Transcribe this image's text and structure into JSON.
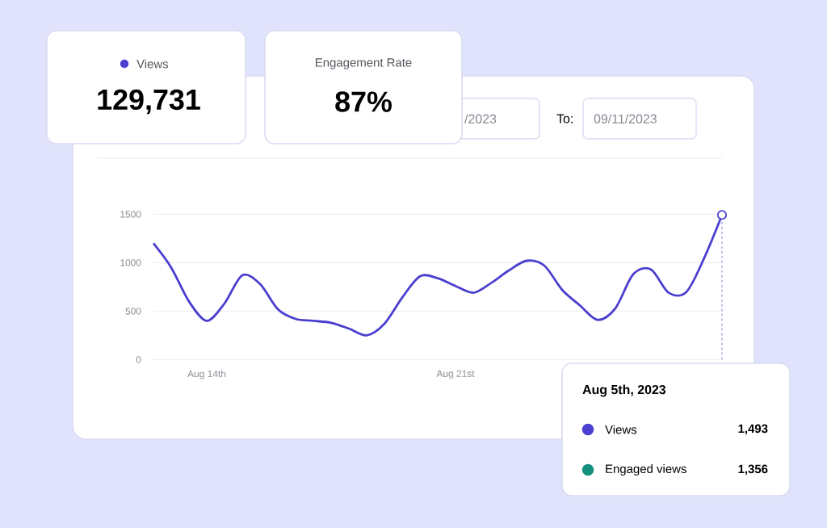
{
  "chart_data": {
    "type": "line",
    "categories": [
      null,
      null,
      null,
      "Aug 14th",
      null,
      null,
      null,
      null,
      null,
      null,
      null,
      null,
      null,
      null,
      null,
      null,
      null,
      "Aug 21st",
      null,
      null,
      null,
      null,
      null,
      null,
      null,
      null,
      null,
      null,
      null,
      null,
      null,
      null,
      null
    ],
    "series": [
      {
        "color": "#4b3fcf",
        "values": [
          1200,
          950,
          600,
          400,
          580,
          870,
          780,
          520,
          420,
          400,
          380,
          320,
          250,
          370,
          640,
          860,
          840,
          760,
          690,
          790,
          920,
          1020,
          970,
          720,
          560,
          410,
          530,
          880,
          930,
          690,
          700,
          1050,
          1493
        ]
      },
      {
        "type": "scatter",
        "color": "#4b3fcf",
        "marker": "circle",
        "values": [
          null,
          null,
          null,
          null,
          null,
          null,
          null,
          null,
          null,
          null,
          null,
          null,
          null,
          null,
          null,
          null,
          null,
          null,
          null,
          null,
          null,
          null,
          null,
          null,
          null,
          null,
          null,
          null,
          null,
          null,
          null,
          null,
          1493
        ]
      }
    ],
    "ylim": [
      0,
      1500
    ],
    "yticks": [
      0,
      500,
      1000,
      1500
    ],
    "grid": "y",
    "annotations": [
      "Views",
      "129,731",
      "Engagement Rate",
      "87%",
      "/2023",
      "To:",
      "09/11/2023",
      "Aug 5th, 2023",
      "Views",
      "1,493",
      "Engaged views",
      "1,356"
    ]
  }
}
